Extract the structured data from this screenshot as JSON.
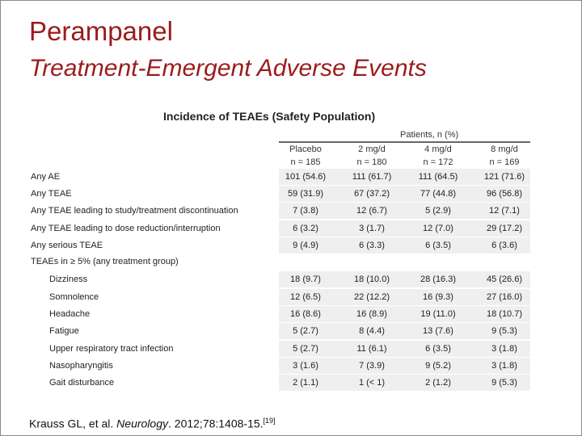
{
  "slide": {
    "title": "Perampanel",
    "subtitle": "Treatment-Emergent Adverse Events",
    "table_title": "Incidence of TEAEs (Safety Population)",
    "group_header": "Patients, n (%)",
    "citation_prefix": "Krauss GL, et al. ",
    "citation_journal": "Neurology",
    "citation_suffix": ". 2012;78:1408-15.",
    "citation_ref": "[19]"
  },
  "columns": [
    {
      "label": "Placebo",
      "n": "n = 185"
    },
    {
      "label": "2 mg/d",
      "n": "n = 180"
    },
    {
      "label": "4 mg/d",
      "n": "n = 172"
    },
    {
      "label": "8 mg/d",
      "n": "n = 169"
    }
  ],
  "rows": [
    {
      "label": "Any AE",
      "values": [
        "101 (54.6)",
        "111 (61.7)",
        "111 (64.5)",
        "121 (71.6)"
      ]
    },
    {
      "label": "Any TEAE",
      "values": [
        "59 (31.9)",
        "67 (37.2)",
        "77 (44.8)",
        "96 (56.8)"
      ]
    },
    {
      "label": "Any TEAE leading to study/treatment discontinuation",
      "values": [
        "7 (3.8)",
        "12 (6.7)",
        "5 (2.9)",
        "12 (7.1)"
      ]
    },
    {
      "label": "Any TEAE leading to dose reduction/interruption",
      "values": [
        "6 (3.2)",
        "3 (1.7)",
        "12 (7.0)",
        "29 (17.2)"
      ]
    },
    {
      "label": "Any serious TEAE",
      "values": [
        "9 (4.9)",
        "6 (3.3)",
        "6 (3.5)",
        "6 (3.6)"
      ]
    },
    {
      "label": "TEAEs in ≥ 5% (any treatment group)",
      "values": [
        "",
        "",
        "",
        ""
      ]
    },
    {
      "label": "Dizziness",
      "values": [
        "18 (9.7)",
        "18 (10.0)",
        "28 (16.3)",
        "45 (26.6)"
      ]
    },
    {
      "label": "Somnolence",
      "values": [
        "12 (6.5)",
        "22 (12.2)",
        "16 (9.3)",
        "27 (16.0)"
      ]
    },
    {
      "label": "Headache",
      "values": [
        "16 (8.6)",
        "16 (8.9)",
        "19 (11.0)",
        "18 (10.7)"
      ]
    },
    {
      "label": "Fatigue",
      "values": [
        "5 (2.7)",
        "8 (4.4)",
        "13 (7.6)",
        "9 (5.3)"
      ]
    },
    {
      "label": "Upper respiratory tract infection",
      "values": [
        "5 (2.7)",
        "11 (6.1)",
        "6 (3.5)",
        "3 (1.8)"
      ]
    },
    {
      "label": "Nasopharyngitis",
      "values": [
        "3 (1.6)",
        "7 (3.9)",
        "9 (5.2)",
        "3 (1.8)"
      ]
    },
    {
      "label": "Gait disturbance",
      "values": [
        "2 (1.1)",
        "1 (< 1)",
        "2 (1.2)",
        "9 (5.3)"
      ]
    }
  ]
}
